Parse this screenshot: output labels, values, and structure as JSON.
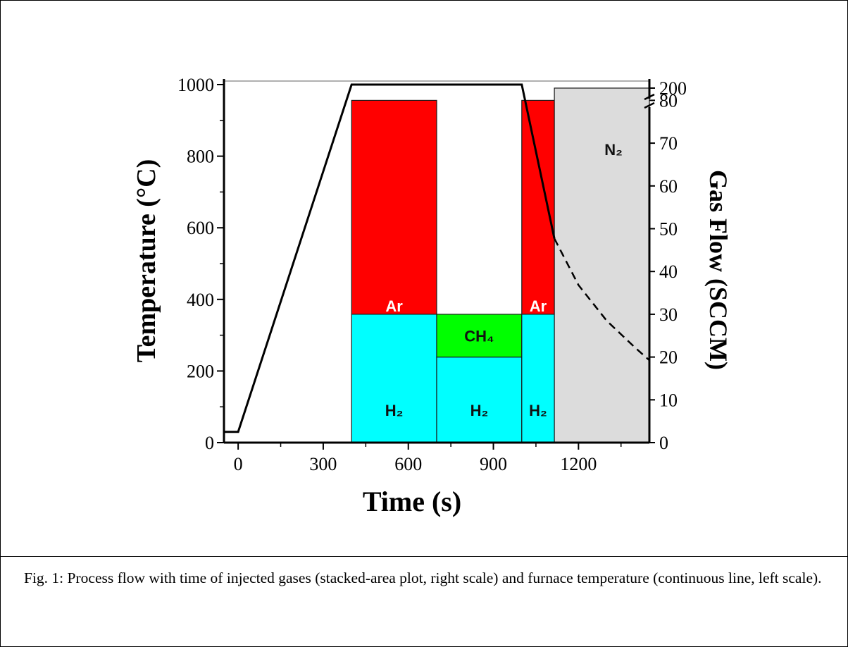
{
  "caption": "Fig. 1: Process flow with time of injected gases (stacked-area plot, right scale) and furnace temperature (continuous line, left scale).",
  "chart_data": {
    "type": "area",
    "xlabel": "Time (s)",
    "ylabel_left": "Temperature (°C)",
    "ylabel_right": "Gas Flow (SCCM)",
    "xlim": [
      -50,
      1450
    ],
    "x_ticks": [
      "0",
      "300",
      "600",
      "900",
      "1200"
    ],
    "ylim_left": [
      0,
      1000
    ],
    "y_ticks_left": [
      "0",
      "200",
      "400",
      "600",
      "800",
      "1000"
    ],
    "ylim_right": [
      0,
      200
    ],
    "y_ticks_right": [
      "0",
      "10",
      "20",
      "30",
      "40",
      "50",
      "60",
      "70",
      "80",
      "200"
    ],
    "right_axis_break": "between 80 and 200",
    "temperature": {
      "solid": [
        [
          -50,
          30
        ],
        [
          0,
          30
        ],
        [
          400,
          1000
        ],
        [
          1000,
          1000
        ],
        [
          1115,
          570
        ]
      ],
      "dashed": [
        [
          1115,
          570
        ],
        [
          1200,
          440
        ],
        [
          1300,
          340
        ],
        [
          1400,
          265
        ],
        [
          1450,
          230
        ]
      ]
    },
    "gas_blocks": [
      {
        "gas": "H2",
        "label": "H₂",
        "x0": 400,
        "x1": 700,
        "y0": 0,
        "y1": 30,
        "color": "#00ffff"
      },
      {
        "gas": "Ar",
        "label": "Ar",
        "x0": 400,
        "x1": 700,
        "y0": 30,
        "y1": 80,
        "color": "#ff0000"
      },
      {
        "gas": "H2",
        "label": "H₂",
        "x0": 700,
        "x1": 1000,
        "y0": 0,
        "y1": 20,
        "color": "#00ffff"
      },
      {
        "gas": "CH4",
        "label": "CH₄",
        "x0": 700,
        "x1": 1000,
        "y0": 20,
        "y1": 30,
        "color": "#00ff00"
      },
      {
        "gas": "H2",
        "label": "H₂",
        "x0": 1000,
        "x1": 1115,
        "y0": 0,
        "y1": 30,
        "color": "#00ffff"
      },
      {
        "gas": "Ar",
        "label": "Ar",
        "x0": 1000,
        "x1": 1115,
        "y0": 30,
        "y1": 80,
        "color": "#ff0000"
      },
      {
        "gas": "N2",
        "label": "N₂",
        "x0": 1115,
        "x1": 1450,
        "y0": 0,
        "y1": 200,
        "color": "#dcdcdc"
      }
    ]
  }
}
